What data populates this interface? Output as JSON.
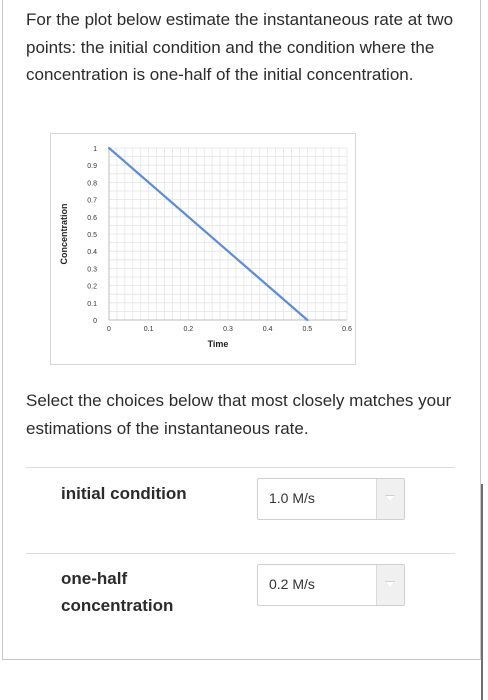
{
  "question": {
    "text": "For the plot below estimate the instantaneous rate at two points: the initial condition and the condition where the concentration is one-half of the initial concentration."
  },
  "chart_data": {
    "type": "line",
    "xlabel": "Time",
    "ylabel": "Concentration",
    "xlim": [
      0,
      0.6
    ],
    "ylim": [
      0,
      1
    ],
    "x_ticks": [
      "0",
      "0.1",
      "0.2",
      "0.3",
      "0.4",
      "0.5",
      "0.6"
    ],
    "y_ticks": [
      "0",
      "0.1",
      "0.2",
      "0.3",
      "0.4",
      "0.5",
      "0.6",
      "0.7",
      "0.8",
      "0.9",
      "1"
    ],
    "grid": true,
    "series": [
      {
        "x": [
          0,
          0.5
        ],
        "y": [
          1,
          0
        ],
        "color": "#5b8ed6"
      }
    ]
  },
  "instructions": {
    "text": "Select the choices below that most closely matches your estimations of the instantaneous rate."
  },
  "rows": [
    {
      "label": "initial condition",
      "selected": "1.0 M/s"
    },
    {
      "label": "one-half concentration",
      "selected": "0.2 M/s"
    }
  ],
  "colors": {
    "line": "#5b8ed6",
    "grid": "#e4e4e4"
  }
}
